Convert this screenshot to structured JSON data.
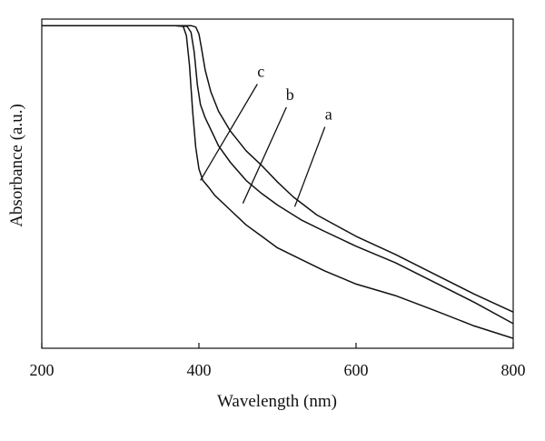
{
  "chart_data": {
    "type": "line",
    "title": "",
    "xlabel": "Wavelength (nm)",
    "ylabel": "Absorbance (a.u.)",
    "xlim": [
      200,
      800
    ],
    "ylim": [
      0,
      1
    ],
    "xticks": [
      200,
      400,
      600,
      800
    ],
    "yticks": [],
    "grid": false,
    "legend": "none",
    "units_note": "",
    "series": [
      {
        "name": "a",
        "x": [
          200,
          300,
          370,
          390,
          396,
          400,
          403,
          408,
          415,
          425,
          440,
          460,
          480,
          500,
          520,
          550,
          600,
          650,
          700,
          750,
          800
        ],
        "y": [
          0.98,
          0.98,
          0.98,
          0.98,
          0.976,
          0.955,
          0.915,
          0.845,
          0.78,
          0.72,
          0.66,
          0.6,
          0.555,
          0.505,
          0.46,
          0.405,
          0.34,
          0.285,
          0.225,
          0.165,
          0.11
        ]
      },
      {
        "name": "b",
        "x": [
          200,
          300,
          370,
          385,
          390,
          394,
          398,
          402,
          408,
          415,
          425,
          440,
          460,
          480,
          500,
          530,
          560,
          600,
          650,
          700,
          750,
          800
        ],
        "y": [
          0.98,
          0.98,
          0.98,
          0.978,
          0.96,
          0.9,
          0.8,
          0.74,
          0.7,
          0.665,
          0.615,
          0.565,
          0.51,
          0.47,
          0.435,
          0.39,
          0.355,
          0.31,
          0.26,
          0.2,
          0.14,
          0.075
        ]
      },
      {
        "name": "c",
        "x": [
          200,
          300,
          370,
          380,
          384,
          388,
          392,
          396,
          400,
          405,
          412,
          420,
          440,
          460,
          480,
          500,
          530,
          560,
          600,
          650,
          700,
          750,
          800
        ],
        "y": [
          0.98,
          0.98,
          0.98,
          0.978,
          0.95,
          0.86,
          0.72,
          0.61,
          0.545,
          0.51,
          0.49,
          0.465,
          0.42,
          0.375,
          0.34,
          0.305,
          0.27,
          0.235,
          0.195,
          0.16,
          0.115,
          0.068,
          0.03
        ]
      }
    ],
    "annotations": [
      {
        "label": "a",
        "x": 565,
        "y": 0.7,
        "tip_x": 522,
        "tip_y": 0.43
      },
      {
        "label": "b",
        "x": 516,
        "y": 0.76,
        "tip_x": 456,
        "tip_y": 0.44
      },
      {
        "label": "c",
        "x": 479,
        "y": 0.83,
        "tip_x": 402,
        "tip_y": 0.51
      }
    ]
  }
}
